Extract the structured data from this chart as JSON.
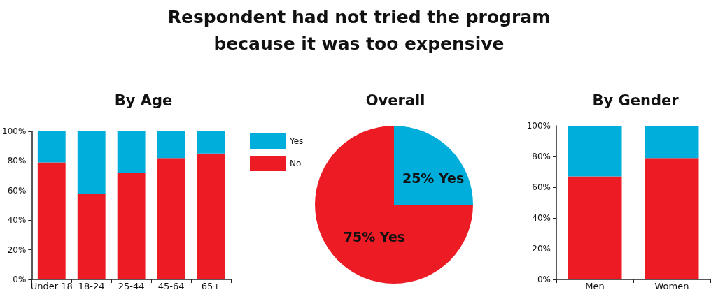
{
  "chart_data": [
    {
      "type": "bar",
      "title": "Respondent had not tried the program because it was too expensive",
      "subtitle": "By Age",
      "categories": [
        "Under 18",
        "18-24",
        "25-44",
        "45-64",
        "65+"
      ],
      "stacked": true,
      "legend": "right",
      "series": [
        {
          "name": "No",
          "color": "#ed1c24",
          "values": [
            79,
            57.5,
            72,
            82,
            85
          ]
        },
        {
          "name": "Yes",
          "color": "#00aedb",
          "values": [
            21,
            42.5,
            28,
            18,
            15
          ]
        }
      ],
      "ylim": [
        0,
        100
      ],
      "yticks": [
        {
          "value": 0,
          "label": "0%"
        },
        {
          "value": 20,
          "label": "20%"
        },
        {
          "value": 40,
          "label": "40%"
        },
        {
          "value": 60,
          "label": "60%"
        },
        {
          "value": 80,
          "label": "80%"
        },
        {
          "value": 100,
          "label": "100%"
        }
      ],
      "grid": false
    },
    {
      "type": "pie",
      "title": "Overall",
      "categories": [
        null,
        null
      ],
      "values": [
        25,
        75
      ],
      "colors": [
        "#00aedb",
        "#ed1c24"
      ],
      "value_labels": [
        "25% Yes",
        "75% Yes"
      ]
    },
    {
      "type": "bar",
      "title": "By Gender",
      "categories": [
        "Men",
        "Women"
      ],
      "stacked": true,
      "series": [
        {
          "color": "#ed1c24",
          "values": [
            67,
            79
          ]
        },
        {
          "color": "#00aedb",
          "values": [
            33,
            21
          ]
        }
      ],
      "ylim": [
        0,
        100
      ],
      "yticks": [
        {
          "value": 0,
          "label": "0%"
        },
        {
          "value": 20,
          "label": "20%"
        },
        {
          "value": 40,
          "label": "40%"
        },
        {
          "value": 60,
          "label": "60%"
        },
        {
          "value": 80,
          "label": "80%"
        },
        {
          "value": 100,
          "label": "100%"
        }
      ],
      "grid": false
    }
  ]
}
